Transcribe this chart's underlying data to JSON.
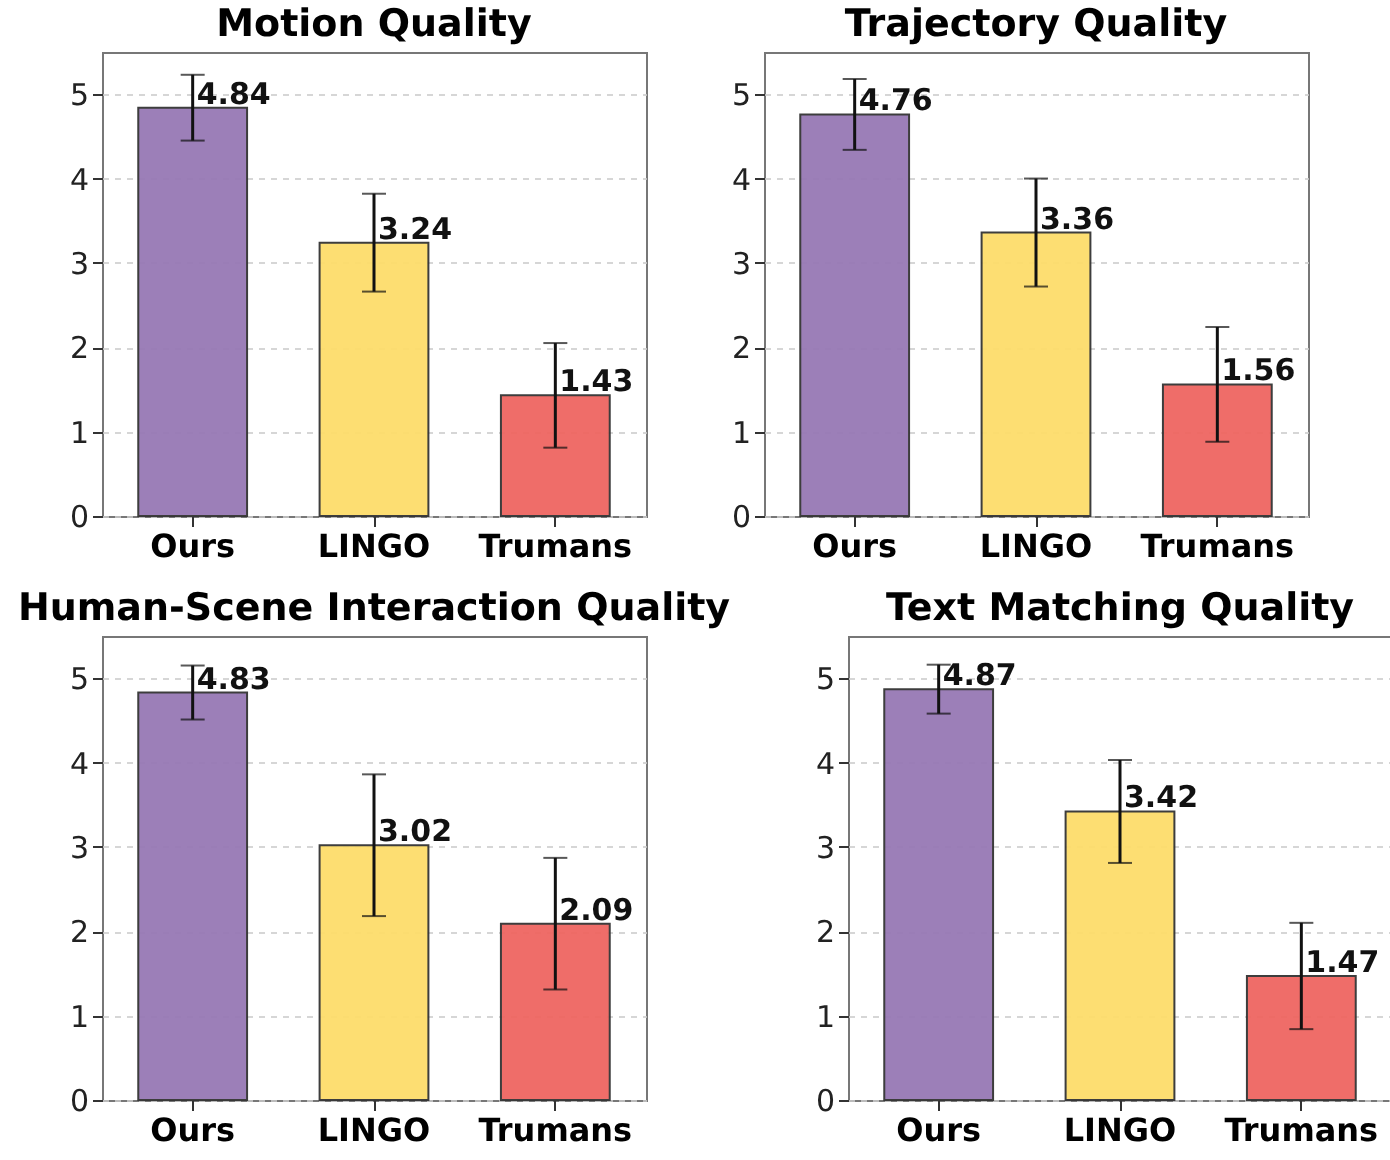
{
  "chart_data": [
    {
      "type": "bar",
      "title": "Motion Quality",
      "categories": [
        "Ours",
        "LINGO",
        "Trumans"
      ],
      "values": [
        4.84,
        3.24,
        1.43
      ],
      "errors": [
        0.39,
        0.58,
        0.62
      ],
      "colors": [
        "#9779b5",
        "#fddd6b",
        "#ef6661"
      ],
      "ylim": [
        0,
        5.5
      ],
      "yticks": [
        0,
        1,
        2,
        3,
        4,
        5
      ],
      "grid": "y",
      "data_labels": true
    },
    {
      "type": "bar",
      "title": "Trajectory Quality",
      "categories": [
        "Ours",
        "LINGO",
        "Trumans"
      ],
      "values": [
        4.76,
        3.36,
        1.56
      ],
      "errors": [
        0.42,
        0.64,
        0.68
      ],
      "colors": [
        "#9779b5",
        "#fddd6b",
        "#ef6661"
      ],
      "ylim": [
        0,
        5.5
      ],
      "yticks": [
        0,
        1,
        2,
        3,
        4,
        5
      ],
      "grid": "y",
      "data_labels": true
    },
    {
      "type": "bar",
      "title": "Human-Scene Interaction Quality",
      "categories": [
        "Ours",
        "LINGO",
        "Trumans"
      ],
      "values": [
        4.83,
        3.02,
        2.09
      ],
      "errors": [
        0.32,
        0.84,
        0.78
      ],
      "colors": [
        "#9779b5",
        "#fddd6b",
        "#ef6661"
      ],
      "ylim": [
        0,
        5.5
      ],
      "yticks": [
        0,
        1,
        2,
        3,
        4,
        5
      ],
      "grid": "y",
      "data_labels": true
    },
    {
      "type": "bar",
      "title": "Text Matching Quality",
      "categories": [
        "Ours",
        "LINGO",
        "Trumans"
      ],
      "values": [
        4.87,
        3.42,
        1.47
      ],
      "errors": [
        0.29,
        0.61,
        0.63
      ],
      "colors": [
        "#9779b5",
        "#fddd6b",
        "#ef6661"
      ],
      "ylim": [
        0,
        5.5
      ],
      "yticks": [
        0,
        1,
        2,
        3,
        4,
        5
      ],
      "grid": "y",
      "data_labels": true
    }
  ]
}
